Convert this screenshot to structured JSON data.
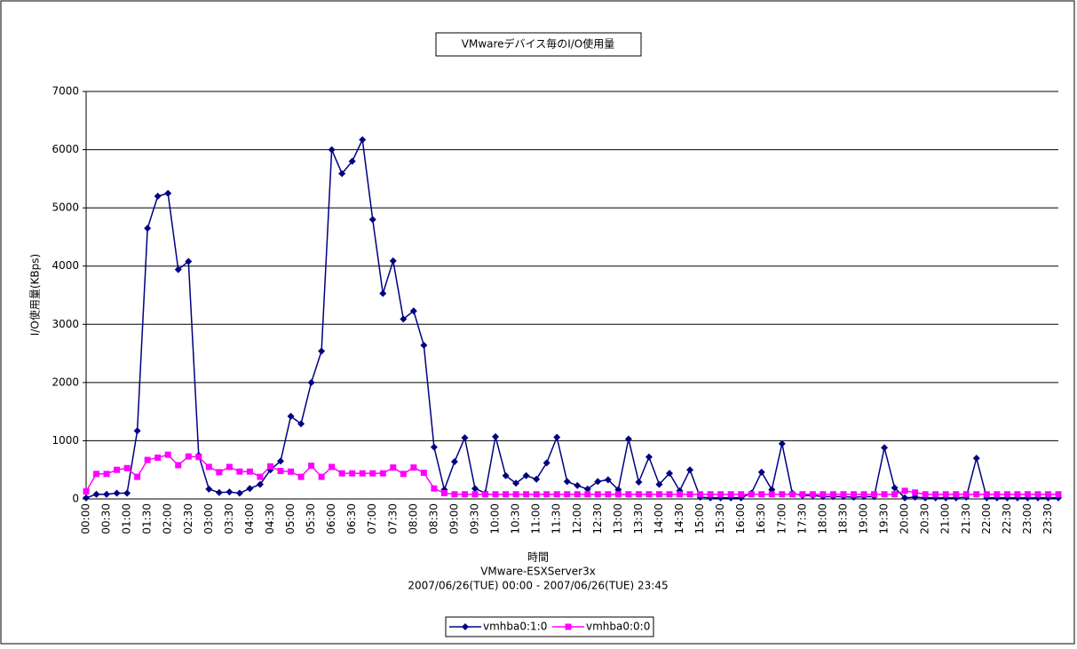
{
  "chart_data": {
    "type": "line",
    "title": "VMwareデバイス毎のI/O使用量",
    "x_label": "時間",
    "subtitles": [
      "VMware-ESXServer3x",
      "2007/06/26(TUE) 00:00 - 2007/06/26(TUE) 23:45"
    ],
    "y_label": "I/O使用量(KBps)",
    "categories": [
      "00:00",
      null,
      "00:30",
      null,
      "01:00",
      null,
      "01:30",
      null,
      "02:00",
      null,
      "02:30",
      null,
      "03:00",
      null,
      "03:30",
      null,
      "04:00",
      null,
      "04:30",
      null,
      "05:00",
      null,
      "05:30",
      null,
      "06:00",
      null,
      "06:30",
      null,
      "07:00",
      null,
      "07:30",
      null,
      "08:00",
      null,
      "08:30",
      null,
      "09:00",
      null,
      "09:30",
      null,
      "10:00",
      null,
      "10:30",
      null,
      "11:00",
      null,
      "11:30",
      null,
      "12:00",
      null,
      "12:30",
      null,
      "13:00",
      null,
      "13:30",
      null,
      "14:00",
      null,
      "14:30",
      null,
      "15:00",
      null,
      "15:30",
      null,
      "16:00",
      null,
      "16:30",
      null,
      "17:00",
      null,
      "17:30",
      null,
      "18:00",
      null,
      "18:30",
      null,
      "19:00",
      null,
      "19:30",
      null,
      "20:00",
      null,
      "20:30",
      null,
      "21:00",
      null,
      "21:30",
      null,
      "22:00",
      null,
      "22:30",
      null,
      "23:00",
      null,
      "23:30",
      null
    ],
    "series": [
      {
        "name": "vmhba0:1:0",
        "color": "#000080",
        "marker": "diamond",
        "values": [
          20,
          80,
          80,
          100,
          100,
          1170,
          4650,
          5200,
          5250,
          3940,
          4080,
          750,
          170,
          110,
          120,
          100,
          180,
          250,
          500,
          650,
          1420,
          1290,
          2000,
          2540,
          6000,
          5590,
          5800,
          6170,
          4800,
          3530,
          4090,
          3090,
          3230,
          2640,
          890,
          160,
          640,
          1050,
          180,
          100,
          1070,
          400,
          270,
          400,
          340,
          620,
          1060,
          300,
          230,
          170,
          300,
          330,
          160,
          1030,
          290,
          720,
          250,
          440,
          140,
          500,
          30,
          20,
          20,
          20,
          20,
          100,
          460,
          160,
          950,
          100,
          60,
          60,
          40,
          40,
          40,
          30,
          40,
          40,
          880,
          190,
          20,
          30,
          20,
          20,
          20,
          20,
          30,
          700,
          20,
          20,
          20,
          20,
          20,
          20,
          20,
          20
        ]
      },
      {
        "name": "vmhba0:0:0",
        "color": "#ff00ff",
        "marker": "square",
        "values": [
          130,
          430,
          430,
          500,
          530,
          380,
          670,
          710,
          760,
          580,
          730,
          720,
          550,
          460,
          550,
          470,
          470,
          380,
          560,
          480,
          470,
          380,
          570,
          380,
          550,
          440,
          440,
          440,
          440,
          440,
          540,
          430,
          540,
          450,
          180,
          100,
          80,
          80,
          80,
          80,
          80,
          80,
          80,
          80,
          80,
          80,
          80,
          80,
          80,
          80,
          80,
          80,
          80,
          80,
          80,
          80,
          80,
          80,
          80,
          80,
          80,
          80,
          80,
          80,
          80,
          80,
          80,
          80,
          80,
          80,
          80,
          80,
          80,
          80,
          80,
          80,
          80,
          80,
          80,
          80,
          140,
          110,
          80,
          80,
          80,
          80,
          80,
          80,
          80,
          80,
          80,
          80,
          80,
          80,
          80,
          80
        ]
      }
    ],
    "ylim": [
      0,
      7000
    ],
    "yticks": [
      0,
      1000,
      2000,
      3000,
      4000,
      5000,
      6000,
      7000
    ],
    "grid": true
  }
}
